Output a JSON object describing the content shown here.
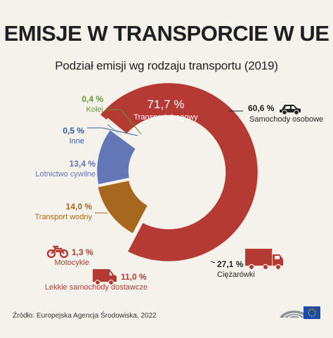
{
  "title": "EMISJE W TRANSPORCIE W UE",
  "subtitle": "Podział emisji wg rodzaju transportu (2019)",
  "source": "Źródło: Europejska Agencja Środowiska, 2022",
  "colors": {
    "road": "#b63a34",
    "water": "#a8671e",
    "aviation": "#6376b6",
    "other": "#2f5f9e",
    "rail": "#5f9a2c",
    "background": "#f5f2ec"
  },
  "chart_data": {
    "type": "pie",
    "title": "Podział emisji wg rodzaju transportu (2019)",
    "unit": "%",
    "slices": [
      {
        "label": "Transport drogowy",
        "value": 71.7,
        "display": "71,7 %",
        "color_key": "road"
      },
      {
        "label": "Transport wodny",
        "value": 14.0,
        "display": "14,0 %",
        "color_key": "water"
      },
      {
        "label": "Lotnictwo cywilne",
        "value": 13.4,
        "display": "13,4 %",
        "color_key": "aviation"
      },
      {
        "label": "Inne",
        "value": 0.5,
        "display": "0,5 %",
        "color_key": "other"
      },
      {
        "label": "Kolej",
        "value": 0.4,
        "display": "0,4 %",
        "color_key": "rail"
      }
    ],
    "road_breakdown": [
      {
        "label": "Samochody osobowe",
        "value": 60.6,
        "display": "60,6 %",
        "icon": "car-icon"
      },
      {
        "label": "Ciężarówki",
        "value": 27.1,
        "display": "27,1 %",
        "icon": "truck-icon"
      },
      {
        "label": "Lekkie samochody dostawcze",
        "value": 11.0,
        "display": "11,0 %",
        "icon": "van-icon"
      },
      {
        "label": "Motocykle",
        "value": 1.3,
        "display": "1,3 %",
        "icon": "motorcycle-icon"
      }
    ]
  }
}
